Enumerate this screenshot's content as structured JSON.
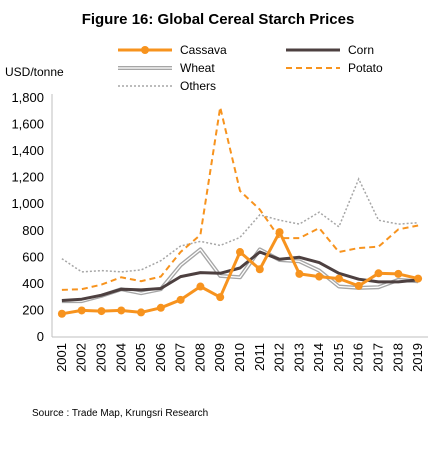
{
  "chart_data": {
    "type": "line",
    "title": "Figure 16: Global Cereal Starch Prices",
    "ylabel": "USD/tonne",
    "xlabel": "",
    "source": "Source : Trade Map, Krungsri Research",
    "x": [
      "2001",
      "2002",
      "2003",
      "2004",
      "2005",
      "2006",
      "2007",
      "2008",
      "2009",
      "2010",
      "2011",
      "2012",
      "2013",
      "2014",
      "2015",
      "2016",
      "2017",
      "2018",
      "2019"
    ],
    "ylim": [
      0,
      1800
    ],
    "yticks": [
      "0",
      "200",
      "400",
      "600",
      "800",
      "1,000",
      "1,200",
      "1,400",
      "1,600",
      "1,800"
    ],
    "grid": false,
    "legend_position": "top",
    "series": [
      {
        "name": "Cassava",
        "color": "#f7931e",
        "style": "solid-marker",
        "values": [
          175,
          200,
          195,
          200,
          185,
          220,
          280,
          380,
          300,
          640,
          510,
          790,
          475,
          455,
          440,
          385,
          480,
          475,
          440
        ]
      },
      {
        "name": "Corn",
        "color": "#4d4040",
        "style": "solid-thick",
        "values": [
          275,
          285,
          315,
          360,
          355,
          365,
          455,
          485,
          480,
          520,
          640,
          585,
          600,
          560,
          480,
          435,
          415,
          415,
          430
        ]
      },
      {
        "name": "Wheat",
        "color": "#a6a6a6",
        "style": "double",
        "values": [
          270,
          270,
          310,
          360,
          330,
          360,
          540,
          660,
          460,
          450,
          660,
          580,
          570,
          500,
          380,
          370,
          375,
          430,
          420
        ]
      },
      {
        "name": "Potato",
        "color": "#f7931e",
        "style": "dashed",
        "values": [
          355,
          360,
          395,
          450,
          420,
          455,
          640,
          770,
          1730,
          1100,
          960,
          745,
          745,
          820,
          640,
          670,
          680,
          810,
          840
        ]
      },
      {
        "name": "Others",
        "color": "#a6a6a6",
        "style": "dotted",
        "values": [
          590,
          490,
          500,
          490,
          505,
          575,
          685,
          720,
          690,
          750,
          920,
          880,
          850,
          940,
          830,
          1190,
          880,
          850,
          860
        ]
      }
    ]
  }
}
